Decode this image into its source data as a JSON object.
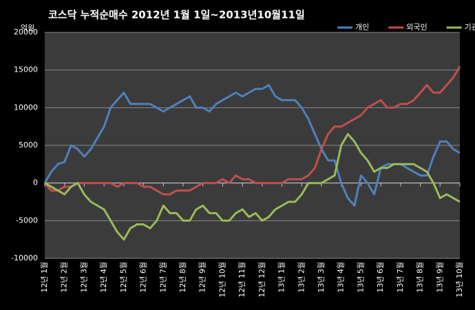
{
  "chart_data": {
    "type": "line",
    "title": "코스닥 누적순매수 2012년 1월 1일~2013년10월11일",
    "y_unit": "억원",
    "categories": [
      "12년 1월",
      null,
      null,
      "12년 2월",
      null,
      null,
      "12년 3월",
      null,
      null,
      "12년 4월",
      null,
      null,
      "12년 5월",
      null,
      null,
      "12년 6월",
      null,
      null,
      "12년 7월",
      null,
      null,
      "12년 8월",
      null,
      null,
      "12년 9월",
      null,
      null,
      "12년 10월",
      null,
      null,
      "12년 11월",
      null,
      null,
      "12년 12월",
      null,
      null,
      "13년 1월",
      null,
      null,
      "13년 2월",
      null,
      null,
      "13년 3월",
      null,
      null,
      "13년 4월",
      null,
      null,
      "13년 5월",
      null,
      null,
      "13년 6월",
      null,
      null,
      "13년 7월",
      null,
      null,
      "13년 8월",
      null,
      null,
      "13년 9월",
      null,
      null,
      "13년 10월"
    ],
    "series": [
      {
        "name": "개인",
        "color": "#4f81bd",
        "values": [
          0,
          1500,
          2500,
          2800,
          5000,
          4500,
          3500,
          4500,
          6000,
          7500,
          10000,
          11000,
          12000,
          10500,
          10500,
          10500,
          10500,
          10000,
          9500,
          10000,
          10500,
          11000,
          11500,
          10000,
          10000,
          9500,
          10500,
          11000,
          11500,
          12000,
          11500,
          12000,
          12500,
          12500,
          13000,
          11500,
          11000,
          11000,
          11000,
          10000,
          8500,
          6500,
          4500,
          3000,
          3000,
          0,
          -2000,
          -3000,
          1000,
          0,
          -1500,
          2000,
          2500,
          2500,
          2500,
          2000,
          1500,
          1000,
          1000,
          3500,
          5500,
          5500,
          4500,
          4000
        ]
      },
      {
        "name": "외국인",
        "color": "#c0504d",
        "values": [
          0,
          -1000,
          -1000,
          -500,
          -500,
          0,
          0,
          0,
          0,
          0,
          0,
          -500,
          0,
          0,
          0,
          -500,
          -500,
          -1000,
          -1500,
          -1500,
          -1000,
          -1000,
          -1000,
          -500,
          0,
          0,
          0,
          500,
          0,
          1000,
          500,
          500,
          0,
          0,
          0,
          0,
          0,
          500,
          500,
          500,
          1000,
          2000,
          4500,
          6500,
          7500,
          7500,
          8000,
          8500,
          9000,
          10000,
          10500,
          11000,
          10000,
          10000,
          10500,
          10500,
          11000,
          12000,
          13000,
          12000,
          12000,
          13000,
          14000,
          15500
        ]
      },
      {
        "name": "기관",
        "color": "#9bbb59",
        "values": [
          0,
          -500,
          -1000,
          -1500,
          -500,
          0,
          -1500,
          -2500,
          -3000,
          -3500,
          -5000,
          -6500,
          -7500,
          -6000,
          -5500,
          -5500,
          -6000,
          -5000,
          -3000,
          -4000,
          -4000,
          -5000,
          -5000,
          -3500,
          -3000,
          -4000,
          -4000,
          -5000,
          -5000,
          -4000,
          -3500,
          -4500,
          -4000,
          -5000,
          -4500,
          -3500,
          -3000,
          -2500,
          -2500,
          -1500,
          0,
          0,
          0,
          500,
          1000,
          5000,
          6500,
          5500,
          4000,
          3000,
          1500,
          2000,
          2000,
          2500,
          2500,
          2500,
          2500,
          2000,
          1500,
          0,
          -2000,
          -1500,
          -2000,
          -2500
        ]
      }
    ],
    "ylim": [
      -10000,
      20000
    ],
    "yticks": [
      -10000,
      -5000,
      0,
      5000,
      10000,
      15000,
      20000
    ],
    "grid": true,
    "legend": "top-right"
  }
}
